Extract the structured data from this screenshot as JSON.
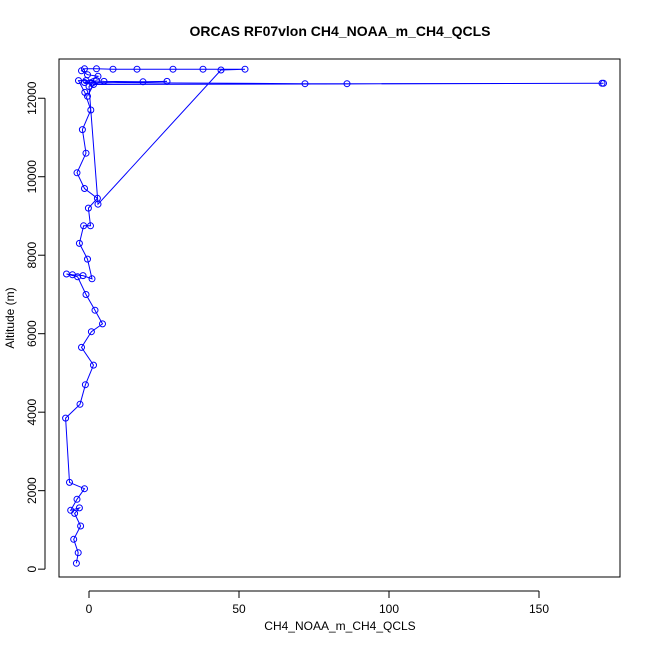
{
  "chart_data": {
    "type": "scatter",
    "title": "ORCAS RF07vlon CH4_NOAA_m_CH4_QCLS",
    "xlabel": "CH4_NOAA_m_CH4_QCLS",
    "ylabel": "Altitude (m)",
    "xlim": [
      -10,
      177
    ],
    "ylim": [
      -200,
      13000
    ],
    "xticks": [
      0,
      50,
      100,
      150
    ],
    "yticks": [
      0,
      2000,
      4000,
      6000,
      8000,
      10000,
      12000
    ],
    "grid": false,
    "marker": "open-circle",
    "connected": true,
    "series_color": "#0000ff",
    "series": [
      {
        "points": [
          [
            -4.2,
            150
          ],
          [
            -3.6,
            420
          ],
          [
            -5.1,
            760
          ],
          [
            -2.8,
            1100
          ],
          [
            -4.8,
            1420
          ],
          [
            -3.2,
            1560
          ],
          [
            -6.1,
            1500
          ],
          [
            -4.0,
            1780
          ],
          [
            -1.5,
            2050
          ],
          [
            -6.5,
            2210
          ],
          [
            -7.8,
            3850
          ],
          [
            -3.0,
            4200
          ],
          [
            -1.2,
            4700
          ],
          [
            1.5,
            5200
          ],
          [
            -2.5,
            5650
          ],
          [
            0.8,
            6050
          ],
          [
            4.5,
            6250
          ],
          [
            2.0,
            6600
          ],
          [
            -1.0,
            7000
          ],
          [
            -3.8,
            7450
          ],
          [
            -7.5,
            7520
          ],
          [
            -5.5,
            7500
          ],
          [
            -2.0,
            7480
          ],
          [
            1.0,
            7400
          ],
          [
            -0.5,
            7900
          ],
          [
            -3.2,
            8300
          ],
          [
            -1.8,
            8750
          ],
          [
            0.5,
            8750
          ],
          [
            -0.2,
            9200
          ],
          [
            2.8,
            9450
          ],
          [
            -1.5,
            9700
          ],
          [
            -4.0,
            10100
          ],
          [
            -1.0,
            10600
          ],
          [
            -2.2,
            11200
          ],
          [
            0.6,
            11700
          ],
          [
            -1.4,
            12150
          ],
          [
            -3.5,
            12450
          ],
          [
            -1.0,
            12450
          ],
          [
            5.0,
            12430
          ],
          [
            18.0,
            12420
          ],
          [
            26.0,
            12430
          ],
          [
            1.0,
            12380
          ],
          [
            2.5,
            12450
          ],
          [
            0.0,
            12300
          ],
          [
            3.0,
            9300
          ],
          [
            44.0,
            12720
          ],
          [
            52.0,
            12740
          ],
          [
            38.0,
            12740
          ],
          [
            28.0,
            12740
          ],
          [
            16.0,
            12740
          ],
          [
            8.0,
            12740
          ],
          [
            2.5,
            12750
          ],
          [
            -1.5,
            12750
          ],
          [
            -2.5,
            12700
          ],
          [
            -0.5,
            12600
          ],
          [
            3.0,
            12560
          ],
          [
            -1.5,
            12400
          ],
          [
            72.0,
            12370
          ],
          [
            86.0,
            12370
          ],
          [
            171.5,
            12380
          ],
          [
            171.0,
            12380
          ],
          [
            1.5,
            12350
          ],
          [
            -0.5,
            12050
          ]
        ]
      }
    ]
  }
}
